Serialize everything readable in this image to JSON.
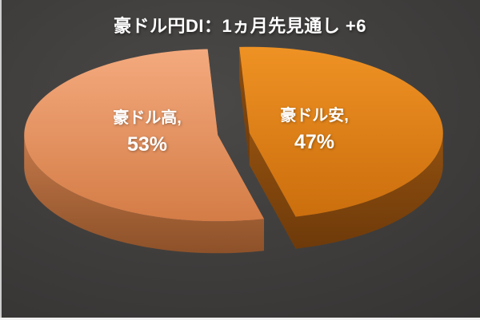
{
  "window": {
    "background_center": "#4B4947",
    "background_edge": "#2D2B2A",
    "left_edge_line_color": "#E9E7E7",
    "bottom_edge_line_color": "#F1F0F0"
  },
  "chart_data": {
    "type": "pie",
    "effect": "3d-exploded",
    "title": "豪ドル円DI：1ヵ月先見通し +6",
    "title_color": "#FFFFFF",
    "legend_position": "none",
    "label_text_color": "#FFFFFF",
    "slices": [
      {
        "label": "豪ドル高",
        "value_pct": 53,
        "display_name": "豪ドル高,",
        "display_value": "53%",
        "top_light": "#F4AA7E",
        "top_dark": "#D47C46",
        "side_light": "#C4794A",
        "side_dark": "#8D5129"
      },
      {
        "label": "豪ドル安",
        "value_pct": 47,
        "display_name": "豪ドル安,",
        "display_value": "47%",
        "top_light": "#EF9224",
        "top_dark": "#CB6E0D",
        "side_light": "#91500F",
        "side_dark": "#6E3A0A"
      }
    ]
  }
}
